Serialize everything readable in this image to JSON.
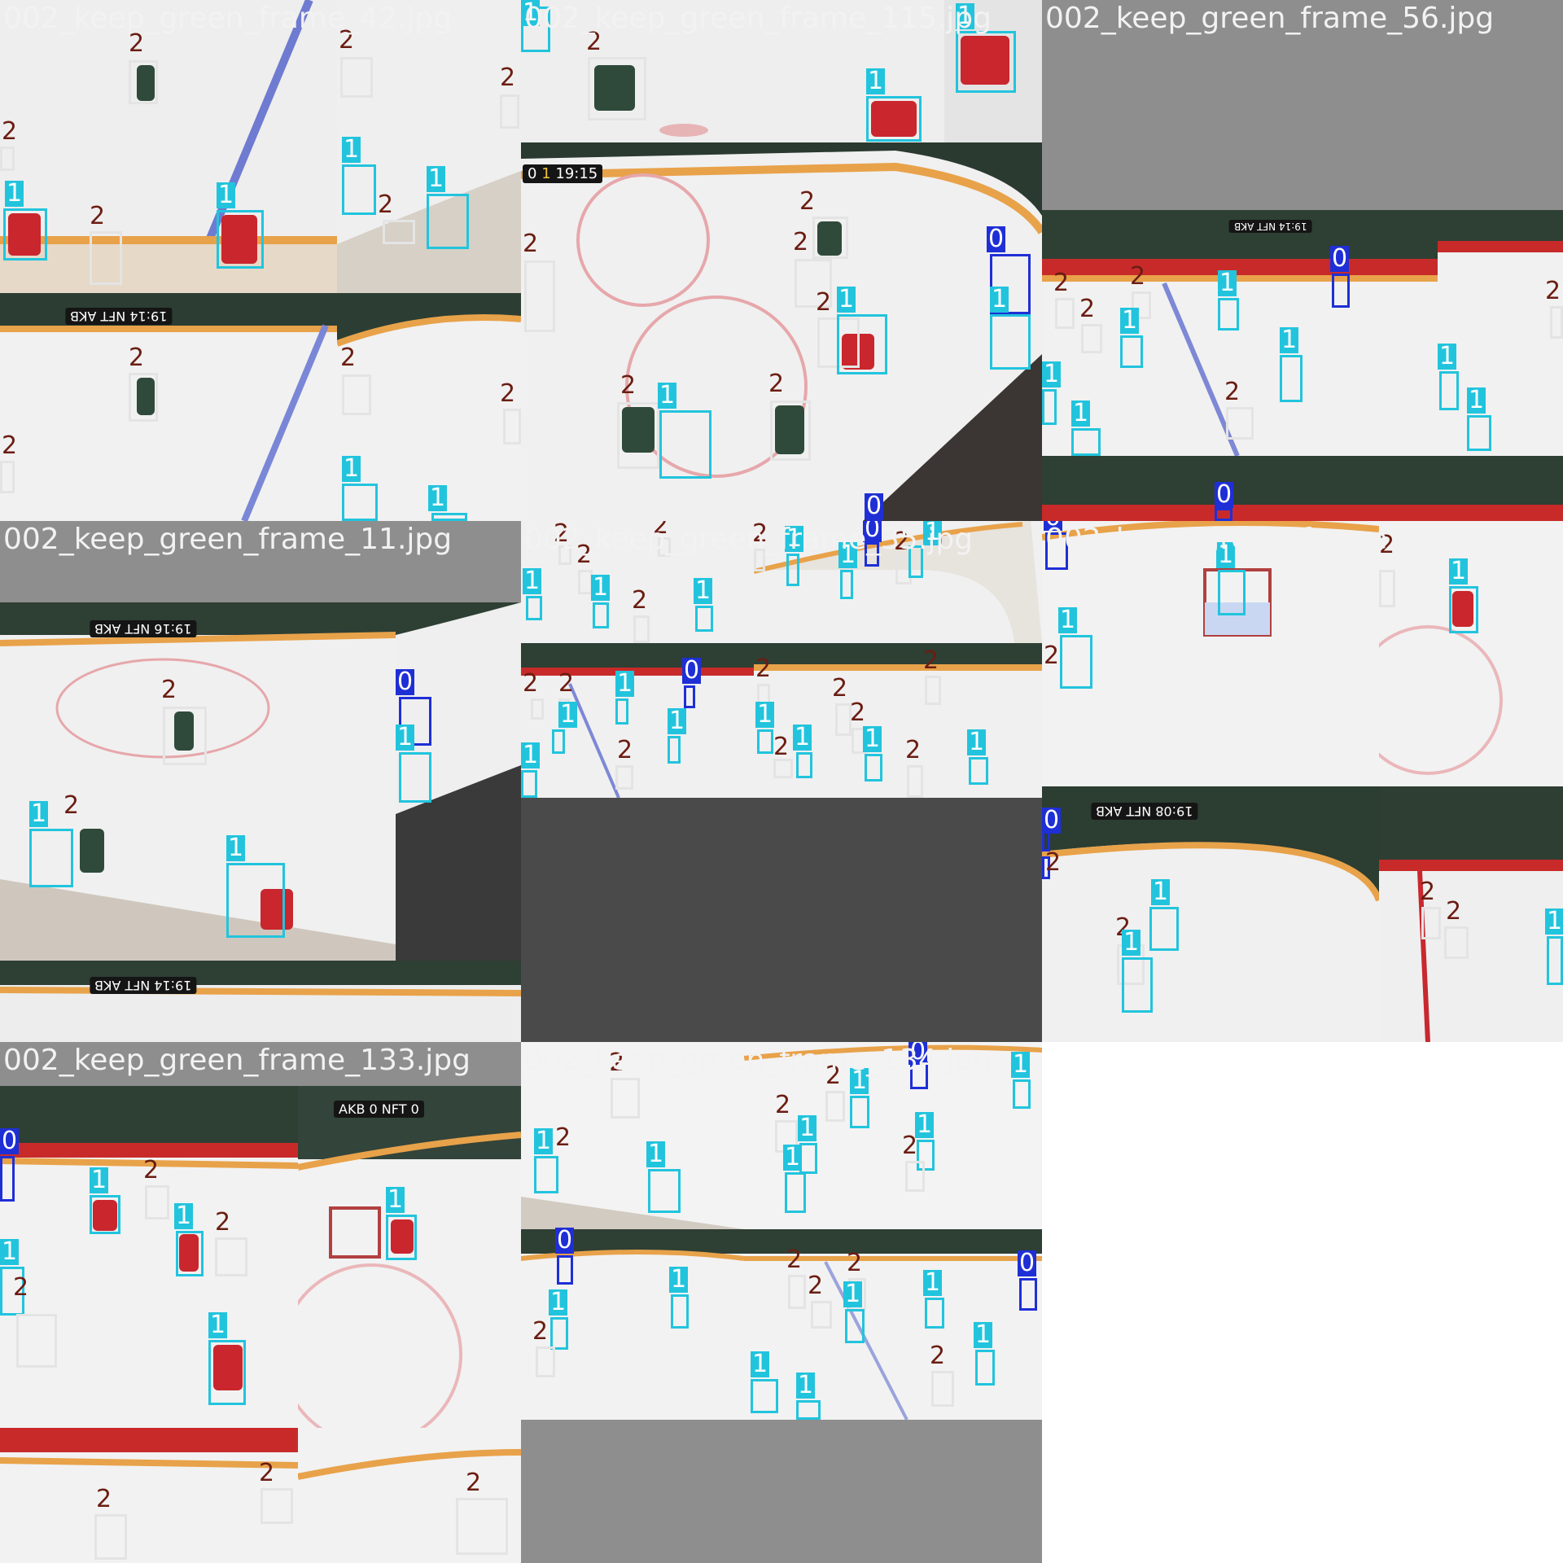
{
  "tiles": [
    {
      "label": "002_keep_green_frame_42.jpg"
    },
    {
      "label": "002_keep_green_frame_115.jpg"
    },
    {
      "label": "002_keep_green_frame_56.jpg"
    },
    {
      "label": "002_keep_green_frame_11.jpg"
    },
    {
      "label": "002_keep_green_frame_35.jpg"
    },
    {
      "label": "002_keep_green_frame_171.jpg"
    },
    {
      "label": "002_keep_green_frame_133.jpg"
    },
    {
      "label": "002_keep_green_frame_134.jpg"
    }
  ],
  "class_labels": {
    "c0": "0",
    "c1": "1",
    "c2": "2"
  },
  "class_colors": {
    "c0": "#1f2fd6",
    "c1": "#22c4dd",
    "c2": "#e4e4e4",
    "label2": "#6b1d12"
  },
  "scoreboard": {
    "clock_42": "19:14",
    "clock_115": "19:15",
    "clock_11": "19:16",
    "clock_171": "19:08",
    "score_left": "0",
    "score_right": "0",
    "period": "1",
    "team_a": "NFT",
    "team_b": "AKB"
  }
}
